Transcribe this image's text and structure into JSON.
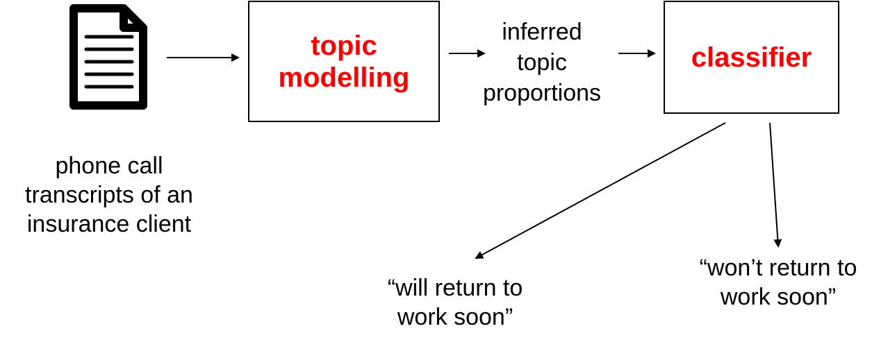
{
  "nodes": {
    "source_label_lines": [
      "phone call",
      "transcripts of an",
      "insurance client"
    ],
    "topic_modelling_lines": [
      "topic",
      "modelling"
    ],
    "topic_proportions_lines": [
      "inferred",
      "topic",
      "proportions"
    ],
    "classifier_label": "classifier",
    "outcome_return_lines": [
      "“will return to",
      "work soon”"
    ],
    "outcome_no_return_lines": [
      "“won’t return to",
      "work soon”"
    ]
  },
  "icons": {
    "document": "document-icon"
  },
  "colors": {
    "highlight": "#ff0000",
    "line": "#000000",
    "text": "#000000"
  }
}
